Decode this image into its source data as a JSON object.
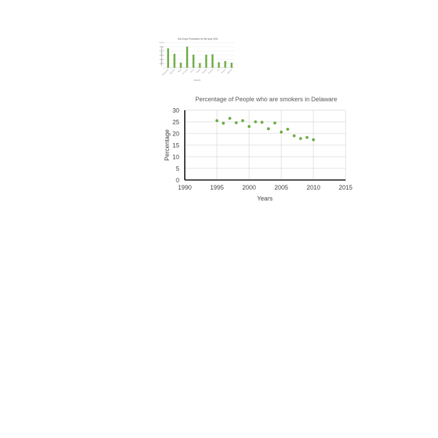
{
  "chart_data": [
    {
      "type": "bar",
      "title": "Tea Crops Production for the year 2001",
      "xlabel": "Country",
      "ylabel": "Production (metric tons)",
      "ylim": [
        0,
        600000
      ],
      "y_ticks": [
        "0",
        "100000",
        "200000",
        "300000",
        "400000",
        "500000",
        "600000"
      ],
      "categories": [
        "Bangladesh",
        "Myanmar",
        "Nepal",
        "Sri Lanka",
        "Kenya",
        "Malawi",
        "Uganda",
        "Tanzania",
        "Iran",
        "Vietnam",
        "Malaysia"
      ],
      "values": [
        460000,
        330000,
        120000,
        500000,
        310000,
        110000,
        310000,
        320000,
        130000,
        160000,
        120000
      ],
      "grid": true,
      "bar_color": "#70ad47"
    },
    {
      "type": "scatter",
      "title": "Percentage of People who are smokers in Delaware",
      "xlabel": "Years",
      "ylabel": "Percentage",
      "xlim": [
        1990,
        2015
      ],
      "ylim": [
        0,
        30
      ],
      "x_ticks": [
        1990,
        1995,
        2000,
        2005,
        2010,
        2015
      ],
      "y_ticks": [
        0,
        5,
        10,
        15,
        20,
        25,
        30
      ],
      "grid": true,
      "marker_color": "#70ad47",
      "series": [
        {
          "x": [
            1995,
            1996,
            1997,
            1998,
            1999,
            2000,
            2001,
            2002,
            2003,
            2004,
            2005,
            2006,
            2007,
            2008,
            2009,
            2010
          ],
          "y": [
            25.5,
            24.4,
            26.5,
            24.6,
            25.5,
            23.0,
            25.0,
            24.8,
            22.0,
            24.5,
            20.6,
            21.8,
            19.0,
            17.8,
            18.3,
            17.3
          ]
        }
      ]
    }
  ]
}
